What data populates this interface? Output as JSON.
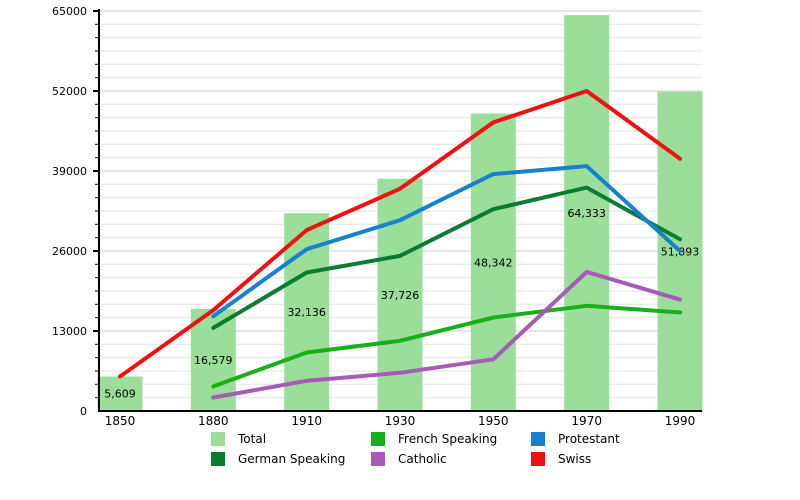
{
  "chart_data": {
    "type": "bar+line",
    "title": "",
    "xlabel": "",
    "ylabel": "",
    "categories": [
      "1850",
      "1880",
      "1910",
      "1930",
      "1950",
      "1970",
      "1990"
    ],
    "ylim": [
      0,
      65000
    ],
    "y_major_step": 13000,
    "y_tick_labels": [
      "0",
      "13000",
      "26000",
      "39000",
      "52000",
      "65000"
    ],
    "grid": true,
    "legend_position": "bottom",
    "bars": {
      "name": "Total",
      "color": "#9ade9a",
      "values": [
        5609,
        16579,
        32136,
        37726,
        48342,
        64333,
        51893
      ],
      "labels": [
        "5,609",
        "16,579",
        "32,136",
        "37,726",
        "48,342",
        "64,333",
        "51,893"
      ]
    },
    "series": [
      {
        "name": "German Speaking",
        "color": "#087d32",
        "values": [
          null,
          13500,
          22500,
          25200,
          32800,
          36300,
          27900
        ]
      },
      {
        "name": "French Speaking",
        "color": "#17b117",
        "values": [
          null,
          4000,
          9500,
          11400,
          15200,
          17100,
          16000
        ]
      },
      {
        "name": "Catholic",
        "color": "#a75ab8",
        "values": [
          null,
          2200,
          4900,
          6200,
          8400,
          22600,
          18100
        ]
      },
      {
        "name": "Protestant",
        "color": "#1682cf",
        "values": [
          null,
          15400,
          26300,
          31000,
          38500,
          39800,
          26000
        ]
      },
      {
        "name": "Swiss",
        "color": "#ee1111",
        "values": [
          5609,
          16400,
          29400,
          36100,
          46900,
          52000,
          41000
        ]
      }
    ],
    "legend_rows": [
      [
        "Total",
        "French Speaking",
        "Protestant"
      ],
      [
        "German Speaking",
        "Catholic",
        "Swiss"
      ]
    ],
    "colors": {
      "axis": "#000000",
      "grid_minor": "#e3e3e3",
      "grid_major": "#cfcfcf"
    }
  }
}
